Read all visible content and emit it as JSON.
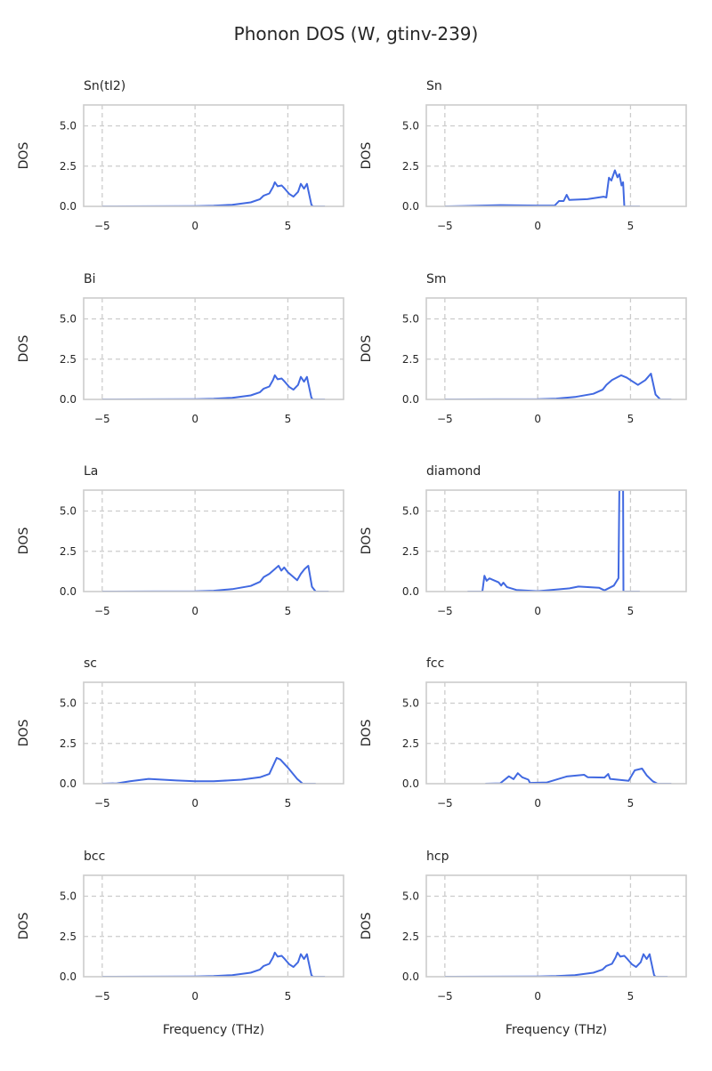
{
  "chart_data": {
    "type": "line",
    "title": "Phonon DOS (W, gtinv-239)",
    "xlabel": "Frequency (THz)",
    "ylabel": "DOS",
    "xlim": [
      -6,
      8
    ],
    "ylim": [
      0,
      6.3
    ],
    "xticks": [
      -5,
      0,
      5
    ],
    "xtick_labels": [
      "−5",
      "0",
      "5"
    ],
    "yticks": [
      0,
      2.5,
      5
    ],
    "ytick_labels": [
      "0.0",
      "2.5",
      "5.0"
    ],
    "grid": true,
    "line_color": "#4169e1",
    "panels": [
      {
        "title": "Sn(tI2)",
        "x": [
          -5,
          0,
          1,
          2,
          3,
          3.5,
          3.7,
          4.0,
          4.2,
          4.3,
          4.45,
          4.67,
          4.83,
          5.07,
          5.3,
          5.55,
          5.7,
          5.87,
          6.03,
          6.1,
          6.27,
          6.35,
          7
        ],
        "y": [
          0,
          0.01,
          0.04,
          0.1,
          0.25,
          0.45,
          0.67,
          0.8,
          1.2,
          1.5,
          1.25,
          1.3,
          1.1,
          0.78,
          0.6,
          0.9,
          1.4,
          1.1,
          1.4,
          1.0,
          0.1,
          0,
          0
        ]
      },
      {
        "title": "Sn",
        "x": [
          -5,
          -4,
          -2,
          0,
          0.92,
          1.15,
          1.4,
          1.56,
          1.7,
          2.68,
          3.55,
          3.7,
          3.84,
          3.97,
          4.16,
          4.3,
          4.4,
          4.52,
          4.6,
          4.67,
          5.5
        ],
        "y": [
          0,
          0.02,
          0.08,
          0.05,
          0.05,
          0.33,
          0.33,
          0.72,
          0.4,
          0.45,
          0.6,
          0.55,
          1.78,
          1.6,
          2.24,
          1.8,
          2.0,
          1.3,
          1.5,
          0,
          0
        ]
      },
      {
        "title": "Bi",
        "x": [
          -5,
          0,
          1,
          2,
          3,
          3.5,
          3.7,
          4.0,
          4.2,
          4.3,
          4.45,
          4.67,
          4.83,
          5.07,
          5.3,
          5.55,
          5.7,
          5.87,
          6.03,
          6.1,
          6.27,
          6.35,
          7
        ],
        "y": [
          0,
          0.01,
          0.04,
          0.1,
          0.25,
          0.45,
          0.67,
          0.8,
          1.2,
          1.5,
          1.25,
          1.3,
          1.1,
          0.78,
          0.6,
          0.9,
          1.4,
          1.1,
          1.4,
          1.0,
          0.1,
          0,
          0
        ]
      },
      {
        "title": "Sm",
        "x": [
          -5,
          0,
          1,
          2,
          3,
          3.5,
          3.7,
          4.0,
          4.5,
          4.8,
          5.0,
          5.4,
          5.8,
          6.1,
          6.35,
          6.6,
          7.2
        ],
        "y": [
          0,
          0.01,
          0.05,
          0.15,
          0.35,
          0.6,
          0.9,
          1.2,
          1.5,
          1.35,
          1.2,
          0.9,
          1.2,
          1.6,
          0.3,
          0,
          0
        ]
      },
      {
        "title": "La",
        "x": [
          -5,
          0,
          1,
          2,
          3,
          3.5,
          3.7,
          4.0,
          4.3,
          4.5,
          4.65,
          4.8,
          5.0,
          5.2,
          5.5,
          5.7,
          5.9,
          6.1,
          6.3,
          6.5,
          7.2
        ],
        "y": [
          0,
          0.01,
          0.05,
          0.15,
          0.35,
          0.6,
          0.9,
          1.1,
          1.4,
          1.6,
          1.3,
          1.5,
          1.2,
          1.0,
          0.7,
          1.1,
          1.4,
          1.6,
          0.3,
          0,
          0
        ]
      },
      {
        "title": "diamond",
        "x": [
          -3.78,
          -2.98,
          -2.87,
          -2.75,
          -2.6,
          -2.1,
          -1.97,
          -1.85,
          -1.66,
          -1.15,
          0,
          1.72,
          2.2,
          3.3,
          3.6,
          4.1,
          4.35,
          4.4,
          4.6,
          4.62,
          5.5
        ],
        "y": [
          0,
          0,
          0.98,
          0.67,
          0.82,
          0.57,
          0.37,
          0.55,
          0.28,
          0.1,
          0.02,
          0.2,
          0.31,
          0.24,
          0.07,
          0.37,
          0.83,
          6.3,
          6.3,
          0,
          0
        ]
      },
      {
        "title": "sc",
        "x": [
          -5,
          -4.2,
          -3.5,
          -2.5,
          -1,
          0,
          1,
          2.5,
          3.5,
          4.0,
          4.4,
          4.6,
          5.0,
          5.5,
          5.8,
          6.5
        ],
        "y": [
          0,
          0.02,
          0.15,
          0.3,
          0.2,
          0.15,
          0.15,
          0.25,
          0.4,
          0.6,
          1.6,
          1.5,
          1.0,
          0.3,
          0,
          0
        ]
      },
      {
        "title": "fcc",
        "x": [
          -2.82,
          -2.02,
          -1.55,
          -1.3,
          -1.07,
          -0.83,
          -0.5,
          -0.42,
          0.5,
          1.56,
          2.0,
          2.5,
          2.7,
          3.6,
          3.8,
          3.9,
          4.9,
          5.23,
          5.62,
          5.87,
          6.2,
          6.45,
          7.2
        ],
        "y": [
          0,
          0.02,
          0.46,
          0.28,
          0.65,
          0.4,
          0.25,
          0.05,
          0.08,
          0.45,
          0.5,
          0.55,
          0.4,
          0.38,
          0.6,
          0.3,
          0.18,
          0.83,
          0.94,
          0.52,
          0.15,
          0,
          0
        ]
      },
      {
        "title": "bcc",
        "x": [
          -5,
          0,
          1,
          2,
          3,
          3.5,
          3.7,
          4.0,
          4.2,
          4.3,
          4.45,
          4.67,
          4.83,
          5.07,
          5.3,
          5.55,
          5.7,
          5.87,
          6.03,
          6.1,
          6.27,
          6.35,
          7
        ],
        "y": [
          0,
          0.01,
          0.04,
          0.1,
          0.25,
          0.45,
          0.67,
          0.8,
          1.2,
          1.5,
          1.25,
          1.3,
          1.1,
          0.78,
          0.6,
          0.9,
          1.4,
          1.1,
          1.4,
          1.0,
          0.1,
          0,
          0
        ]
      },
      {
        "title": "hcp",
        "x": [
          -5,
          0,
          1,
          2,
          3,
          3.5,
          3.7,
          4.0,
          4.2,
          4.3,
          4.45,
          4.67,
          4.83,
          5.07,
          5.3,
          5.55,
          5.7,
          5.87,
          6.03,
          6.1,
          6.27,
          6.35,
          7
        ],
        "y": [
          0,
          0.01,
          0.04,
          0.1,
          0.25,
          0.45,
          0.67,
          0.8,
          1.2,
          1.5,
          1.25,
          1.3,
          1.1,
          0.78,
          0.6,
          0.9,
          1.4,
          1.1,
          1.4,
          1.0,
          0.1,
          0,
          0
        ]
      }
    ]
  }
}
